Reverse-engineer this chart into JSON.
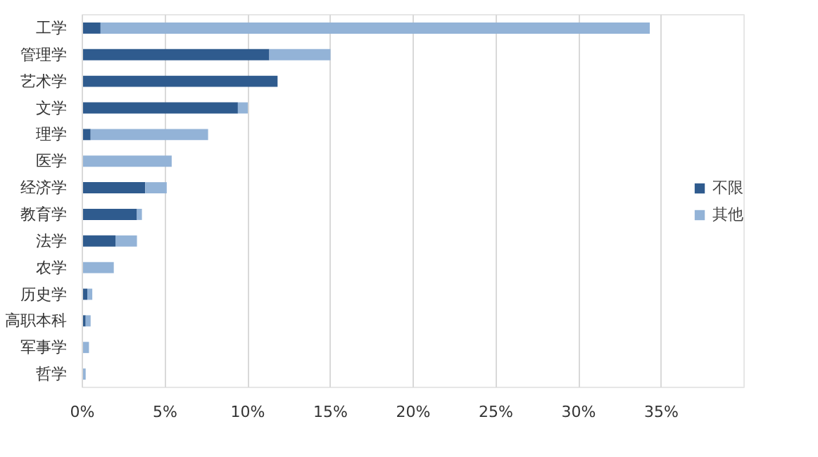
{
  "chart_data": {
    "type": "bar",
    "orientation": "horizontal",
    "stacked": true,
    "categories": [
      "工学",
      "管理学",
      "艺术学",
      "文学",
      "理学",
      "医学",
      "经济学",
      "教育学",
      "法学",
      "农学",
      "历史学",
      "高职本科",
      "军事学",
      "哲学"
    ],
    "series": [
      {
        "name": "不限",
        "color": "#2f5b8e",
        "values": [
          1.1,
          11.3,
          11.8,
          9.4,
          0.5,
          0,
          3.8,
          3.3,
          2.0,
          0,
          0.3,
          0.2,
          0,
          0
        ]
      },
      {
        "name": "其他",
        "color": "#93b3d7",
        "values": [
          33.2,
          3.7,
          0,
          0.6,
          7.1,
          5.4,
          1.3,
          0.3,
          1.3,
          1.9,
          0.3,
          0.3,
          0.4,
          0.2
        ]
      }
    ],
    "xlim": [
      0,
      40
    ],
    "xticks": [
      {
        "value": 0,
        "label": "0%"
      },
      {
        "value": 5,
        "label": "5%"
      },
      {
        "value": 10,
        "label": "10%"
      },
      {
        "value": 15,
        "label": "15%"
      },
      {
        "value": 20,
        "label": "20%"
      },
      {
        "value": 25,
        "label": "25%"
      },
      {
        "value": 30,
        "label": "30%"
      },
      {
        "value": 35,
        "label": "35%"
      }
    ],
    "grid": "x",
    "legend": "right"
  }
}
